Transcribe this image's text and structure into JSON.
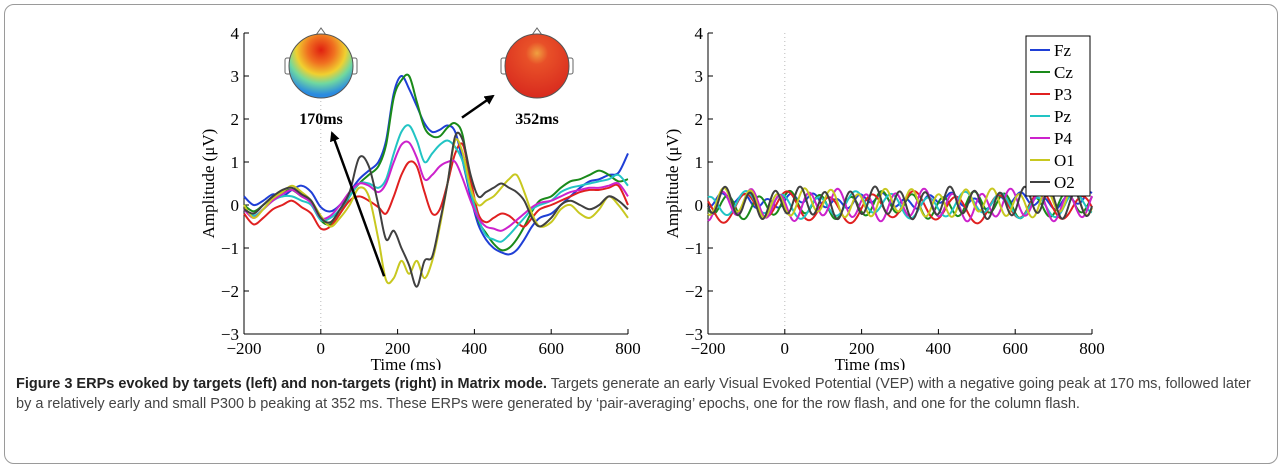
{
  "chart_data": [
    {
      "type": "line",
      "title": "",
      "xlabel": "Time (ms)",
      "ylabel": "Amplitude (μV)",
      "xlim": [
        -200,
        800
      ],
      "ylim": [
        -3,
        4
      ],
      "xticks": [
        "−200",
        "0",
        "200",
        "400",
        "600",
        "800"
      ],
      "yticks": [
        "−3",
        "−2",
        "−1",
        "0",
        "1",
        "2",
        "3",
        "4"
      ],
      "series": [
        {
          "name": "Fz",
          "color": "#1f3fd6",
          "x": [
            -200,
            -175,
            -150,
            -125,
            -100,
            -75,
            -50,
            -25,
            0,
            25,
            50,
            75,
            100,
            125,
            150,
            170,
            190,
            210,
            230,
            250,
            270,
            290,
            310,
            330,
            350,
            370,
            390,
            410,
            430,
            450,
            470,
            490,
            510,
            530,
            550,
            570,
            600,
            625,
            650,
            675,
            700,
            725,
            750,
            775,
            800
          ],
          "y": [
            0.2,
            0.0,
            0.1,
            0.25,
            0.2,
            0.35,
            0.45,
            0.3,
            -0.05,
            -0.15,
            0.0,
            0.3,
            0.6,
            0.8,
            1.0,
            1.5,
            2.6,
            3.0,
            2.7,
            2.3,
            1.9,
            1.7,
            1.75,
            1.85,
            1.7,
            1.0,
            0.2,
            -0.45,
            -0.8,
            -1.0,
            -1.1,
            -1.15,
            -1.05,
            -0.8,
            -0.5,
            -0.3,
            -0.2,
            0.0,
            0.2,
            0.4,
            0.55,
            0.6,
            0.7,
            0.75,
            1.2
          ]
        },
        {
          "name": "Cz",
          "color": "#1a8a1a",
          "x": [
            -200,
            -175,
            -150,
            -125,
            -100,
            -75,
            -50,
            -25,
            0,
            25,
            50,
            75,
            100,
            125,
            150,
            170,
            190,
            210,
            230,
            250,
            270,
            290,
            310,
            330,
            350,
            370,
            390,
            410,
            430,
            450,
            470,
            490,
            510,
            530,
            550,
            570,
            600,
            625,
            650,
            675,
            700,
            725,
            750,
            775,
            800
          ],
          "y": [
            0.0,
            -0.15,
            0.0,
            0.2,
            0.3,
            0.35,
            0.2,
            0.1,
            -0.35,
            -0.45,
            -0.2,
            0.2,
            0.5,
            0.7,
            0.9,
            1.4,
            2.5,
            2.9,
            3.0,
            2.4,
            1.8,
            1.6,
            1.6,
            1.8,
            1.9,
            1.6,
            0.4,
            -0.35,
            -0.65,
            -0.9,
            -1.05,
            -1.0,
            -0.8,
            -0.5,
            -0.15,
            0.1,
            0.2,
            0.4,
            0.55,
            0.6,
            0.7,
            0.8,
            0.7,
            0.55,
            0.6
          ]
        },
        {
          "name": "P3",
          "color": "#e02020",
          "x": [
            -200,
            -175,
            -150,
            -125,
            -100,
            -75,
            -50,
            -25,
            0,
            25,
            50,
            75,
            100,
            125,
            150,
            170,
            190,
            210,
            230,
            250,
            270,
            290,
            310,
            330,
            350,
            370,
            390,
            410,
            430,
            450,
            470,
            490,
            510,
            530,
            550,
            570,
            600,
            625,
            650,
            675,
            700,
            725,
            750,
            775,
            800
          ],
          "y": [
            -0.2,
            -0.45,
            -0.3,
            -0.1,
            0.0,
            0.1,
            -0.05,
            -0.2,
            -0.55,
            -0.5,
            -0.2,
            0.1,
            0.2,
            0.1,
            -0.05,
            -0.2,
            0.2,
            0.7,
            1.0,
            0.9,
            0.3,
            -0.2,
            -0.1,
            0.5,
            1.2,
            1.4,
            0.6,
            -0.2,
            -0.4,
            -0.3,
            -0.2,
            -0.25,
            -0.4,
            -0.5,
            -0.3,
            -0.1,
            0.0,
            0.1,
            0.2,
            0.3,
            0.35,
            0.35,
            0.4,
            0.45,
            0.0
          ]
        },
        {
          "name": "Pz",
          "color": "#22c4c4",
          "x": [
            -200,
            -175,
            -150,
            -125,
            -100,
            -75,
            -50,
            -25,
            0,
            25,
            50,
            75,
            100,
            125,
            150,
            170,
            190,
            210,
            230,
            250,
            270,
            290,
            310,
            330,
            350,
            370,
            390,
            410,
            430,
            450,
            470,
            490,
            510,
            530,
            550,
            570,
            600,
            625,
            650,
            675,
            700,
            725,
            750,
            775,
            800
          ],
          "y": [
            -0.1,
            -0.25,
            -0.1,
            0.1,
            0.2,
            0.2,
            0.1,
            0.0,
            -0.35,
            -0.3,
            -0.1,
            0.2,
            0.5,
            0.5,
            0.4,
            0.6,
            1.2,
            1.7,
            1.85,
            1.5,
            1.0,
            1.2,
            1.4,
            1.5,
            1.35,
            1.0,
            0.3,
            -0.3,
            -0.7,
            -0.8,
            -0.85,
            -0.7,
            -0.5,
            -0.3,
            -0.1,
            0.0,
            0.1,
            0.3,
            0.4,
            0.45,
            0.5,
            0.55,
            0.6,
            0.7,
            0.45
          ]
        },
        {
          "name": "P4",
          "color": "#cc22cc",
          "x": [
            -200,
            -175,
            -150,
            -125,
            -100,
            -75,
            -50,
            -25,
            0,
            25,
            50,
            75,
            100,
            125,
            150,
            170,
            190,
            210,
            230,
            250,
            270,
            290,
            310,
            330,
            350,
            370,
            390,
            410,
            430,
            450,
            470,
            490,
            510,
            530,
            550,
            570,
            600,
            625,
            650,
            675,
            700,
            725,
            750,
            775,
            800
          ],
          "y": [
            -0.1,
            -0.3,
            -0.1,
            0.1,
            0.25,
            0.35,
            0.2,
            0.05,
            -0.3,
            -0.25,
            0.0,
            0.3,
            0.5,
            0.45,
            0.3,
            0.5,
            1.0,
            1.4,
            1.45,
            1.1,
            0.6,
            0.7,
            0.9,
            1.0,
            1.0,
            0.6,
            0.1,
            -0.3,
            -0.5,
            -0.55,
            -0.6,
            -0.5,
            -0.35,
            -0.2,
            -0.05,
            0.05,
            0.1,
            0.2,
            0.3,
            0.35,
            0.4,
            0.4,
            0.45,
            0.5,
            0.2
          ]
        },
        {
          "name": "O1",
          "color": "#c8c820",
          "x": [
            -200,
            -175,
            -150,
            -125,
            -100,
            -75,
            -50,
            -25,
            0,
            25,
            50,
            75,
            100,
            125,
            150,
            170,
            190,
            210,
            230,
            250,
            270,
            290,
            310,
            330,
            350,
            370,
            390,
            410,
            430,
            450,
            470,
            490,
            510,
            530,
            550,
            570,
            600,
            625,
            650,
            675,
            700,
            725,
            750,
            775,
            800
          ],
          "y": [
            0.0,
            -0.3,
            -0.1,
            0.15,
            0.3,
            0.45,
            0.3,
            0.1,
            -0.25,
            -0.5,
            -0.3,
            0.0,
            0.4,
            0.2,
            -0.8,
            -1.75,
            -1.7,
            -1.3,
            -1.6,
            -1.3,
            -1.7,
            -1.3,
            -0.5,
            0.5,
            1.5,
            1.2,
            0.4,
            0.0,
            0.1,
            0.2,
            0.4,
            0.6,
            0.7,
            0.3,
            -0.2,
            -0.5,
            -0.4,
            -0.1,
            0.0,
            -0.2,
            -0.3,
            -0.1,
            0.2,
            0.0,
            -0.3
          ]
        },
        {
          "name": "O2",
          "color": "#404040",
          "x": [
            -200,
            -175,
            -150,
            -125,
            -100,
            -75,
            -50,
            -25,
            0,
            25,
            50,
            75,
            100,
            125,
            150,
            170,
            190,
            210,
            230,
            250,
            270,
            290,
            310,
            330,
            350,
            370,
            390,
            410,
            430,
            450,
            470,
            490,
            510,
            530,
            550,
            570,
            600,
            625,
            650,
            675,
            700,
            725,
            750,
            775,
            800
          ],
          "y": [
            -0.1,
            -0.2,
            0.0,
            0.2,
            0.35,
            0.4,
            0.25,
            0.1,
            -0.3,
            -0.4,
            -0.1,
            0.3,
            1.1,
            0.9,
            0.0,
            -0.8,
            -0.6,
            -1.0,
            -1.4,
            -1.9,
            -1.3,
            -1.2,
            -0.4,
            0.5,
            1.6,
            1.5,
            0.7,
            0.2,
            0.3,
            0.4,
            0.5,
            0.4,
            0.3,
            0.1,
            -0.3,
            -0.5,
            -0.3,
            0.0,
            0.1,
            0.0,
            -0.1,
            0.0,
            0.2,
            0.1,
            -0.1
          ]
        }
      ],
      "annotations": [
        {
          "text": "170ms",
          "x": 170,
          "y": -1.75
        },
        {
          "text": "352ms",
          "x": 352,
          "y": 1.8
        }
      ]
    },
    {
      "type": "line",
      "title": "",
      "xlabel": "Time (ms)",
      "ylabel": "Amplitude (μV)",
      "xlim": [
        -200,
        800
      ],
      "ylim": [
        -3,
        4
      ],
      "xticks": [
        "−200",
        "0",
        "200",
        "400",
        "600",
        "800"
      ],
      "yticks": [
        "−3",
        "−2",
        "−1",
        "0",
        "1",
        "2",
        "3",
        "4"
      ],
      "legend": "top-right",
      "series_note": "same seven channels; non-target activity oscillates around 0 within about ±0.45 μV",
      "series": [
        {
          "name": "Fz",
          "color": "#1f3fd6",
          "amplitude": 0.12,
          "period_ms": 60,
          "phase": 0.0,
          "offset": 0.1
        },
        {
          "name": "Cz",
          "color": "#1a8a1a",
          "amplitude": 0.25,
          "period_ms": 80,
          "phase": 0.6,
          "offset": 0.0
        },
        {
          "name": "P3",
          "color": "#e02020",
          "amplitude": 0.3,
          "period_ms": 110,
          "phase": 1.2,
          "offset": -0.05
        },
        {
          "name": "Pz",
          "color": "#22c4c4",
          "amplitude": 0.25,
          "period_ms": 95,
          "phase": 2.0,
          "offset": 0.0
        },
        {
          "name": "P4",
          "color": "#cc22cc",
          "amplitude": 0.3,
          "period_ms": 75,
          "phase": 2.6,
          "offset": 0.0
        },
        {
          "name": "O1",
          "color": "#c8c820",
          "amplitude": 0.28,
          "period_ms": 70,
          "phase": 3.3,
          "offset": 0.05
        },
        {
          "name": "O2",
          "color": "#404040",
          "amplitude": 0.3,
          "period_ms": 65,
          "phase": 4.0,
          "offset": 0.05
        }
      ]
    }
  ],
  "caption": {
    "label": "Figure 3 ERPs evoked by targets (left) and non-targets (right) in Matrix mode.",
    "text": "Targets generate an early Visual Evoked Potential (VEP) with a negative going peak at 170 ms, followed later by a relatively early and small P300 b peaking at 352 ms. These ERPs were generated by ‘pair-averaging’ epochs, one for the row flash, and one for the column flash."
  },
  "colors": {
    "frame": "#9a9a9a",
    "caption_text": "#444444"
  }
}
